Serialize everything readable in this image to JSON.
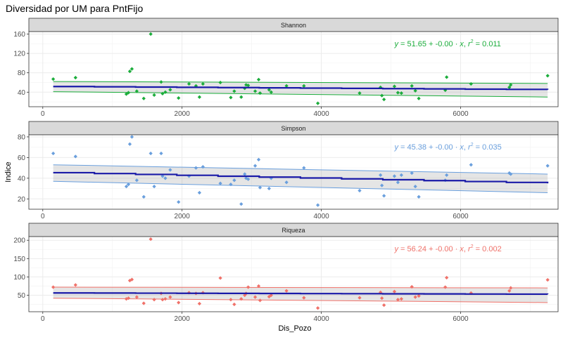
{
  "page_title": "Diversidad por UM para PntFijo",
  "chart_data": {
    "type": "scatter",
    "title": "Diversidad por UM para PntFijo",
    "xlabel": "Dis_Pozo",
    "ylabel": "Indice",
    "xlim": [
      -200,
      7400
    ],
    "x_ticks": [
      0,
      2000,
      4000,
      6000
    ],
    "x_tick_labels": [
      "0",
      "2000",
      "4000",
      "6000"
    ],
    "grid": true,
    "facet_layout": "stacked vertically, shared x axis, free y axis",
    "panels": [
      {
        "label": "Shannon",
        "color": "#1bad3b",
        "equation": {
          "yhat": "y",
          "intercept": "= 51.65",
          "slope": "+ -0.00",
          "r2": "= 0.011"
        },
        "ylim": [
          10,
          165
        ],
        "y_ticks": [
          40,
          80,
          120,
          160
        ],
        "fit": {
          "intercept": 51.65,
          "slope": -0.00091,
          "ci_start": [
            41,
            62
          ],
          "ci_end": [
            30,
            58
          ]
        },
        "x": [
          150,
          470,
          1200,
          1230,
          1250,
          1280,
          1350,
          1450,
          1550,
          1600,
          1700,
          1720,
          1760,
          1830,
          1950,
          2100,
          2200,
          2250,
          2300,
          2550,
          2700,
          2750,
          2850,
          2900,
          2920,
          2950,
          3050,
          3100,
          3120,
          3250,
          3280,
          3500,
          3750,
          3950,
          4550,
          4850,
          4870,
          4900,
          5050,
          5100,
          5150,
          5300,
          5350,
          5400,
          5780,
          5800,
          6150,
          6700,
          6720,
          7250
        ],
        "y": [
          67,
          70,
          36,
          39,
          83,
          88,
          42,
          27,
          160,
          34,
          61,
          37,
          40,
          45,
          28,
          57,
          53,
          30,
          57,
          60,
          29,
          42,
          30,
          48,
          55,
          54,
          42,
          66,
          38,
          45,
          40,
          53,
          53,
          17,
          38,
          50,
          33,
          25,
          52,
          39,
          38,
          53,
          43,
          27,
          44,
          71,
          57,
          50,
          55,
          74
        ]
      },
      {
        "label": "Simpson",
        "color": "#6a9fdd",
        "equation": {
          "yhat": "y",
          "intercept": "= 45.38",
          "slope": "+ -0.00",
          "r2": "= 0.035"
        },
        "ylim": [
          10,
          82
        ],
        "y_ticks": [
          20,
          40,
          60,
          80
        ],
        "fit": {
          "intercept": 45.38,
          "slope": -0.00145,
          "ci_start": [
            37,
            53
          ],
          "ci_end": [
            26,
            44
          ]
        },
        "x": [
          150,
          470,
          1200,
          1230,
          1250,
          1280,
          1350,
          1450,
          1550,
          1600,
          1700,
          1720,
          1760,
          1830,
          1950,
          2100,
          2200,
          2250,
          2300,
          2550,
          2700,
          2750,
          2850,
          2900,
          2920,
          2950,
          3050,
          3100,
          3120,
          3250,
          3280,
          3500,
          3750,
          3950,
          4550,
          4850,
          4870,
          4900,
          5050,
          5100,
          5150,
          5300,
          5350,
          5400,
          5780,
          5800,
          6150,
          6700,
          6720,
          7250
        ],
        "y": [
          64,
          61,
          32,
          34,
          73,
          80,
          38,
          22,
          64,
          32,
          64,
          42,
          40,
          48,
          17,
          42,
          50,
          26,
          51,
          35,
          34,
          38,
          15,
          44,
          40,
          39,
          52,
          58,
          31,
          30,
          40,
          36,
          50,
          14,
          28,
          43,
          33,
          23,
          42,
          36,
          43,
          45,
          32,
          22,
          38,
          43,
          53,
          45,
          44,
          52
        ]
      },
      {
        "label": "Riqueza",
        "color": "#f0726a",
        "equation": {
          "yhat": "y",
          "intercept": "= 56.24",
          "slope": "+ -0.00",
          "r2": "= 0.002"
        },
        "ylim": [
          5,
          210
        ],
        "y_ticks": [
          50,
          100,
          150,
          200
        ],
        "fit": {
          "intercept": 56.24,
          "slope": -0.0005,
          "ci_start": [
            42,
            72
          ],
          "ci_end": [
            30,
            70
          ]
        },
        "x": [
          150,
          470,
          1200,
          1230,
          1250,
          1280,
          1350,
          1450,
          1550,
          1600,
          1700,
          1720,
          1760,
          1830,
          1950,
          2100,
          2200,
          2250,
          2300,
          2550,
          2700,
          2750,
          2850,
          2900,
          2920,
          2950,
          3050,
          3100,
          3120,
          3250,
          3280,
          3500,
          3750,
          3950,
          4550,
          4850,
          4870,
          4900,
          5050,
          5100,
          5150,
          5300,
          5350,
          5400,
          5780,
          5800,
          6150,
          6700,
          6720,
          7250
        ],
        "y": [
          72,
          78,
          40,
          42,
          90,
          93,
          45,
          28,
          203,
          38,
          55,
          38,
          40,
          45,
          30,
          57,
          55,
          27,
          57,
          97,
          38,
          25,
          40,
          50,
          55,
          72,
          45,
          75,
          36,
          46,
          50,
          62,
          43,
          15,
          43,
          58,
          42,
          23,
          60,
          38,
          40,
          73,
          45,
          48,
          72,
          98,
          56,
          62,
          70,
          92
        ]
      }
    ]
  }
}
